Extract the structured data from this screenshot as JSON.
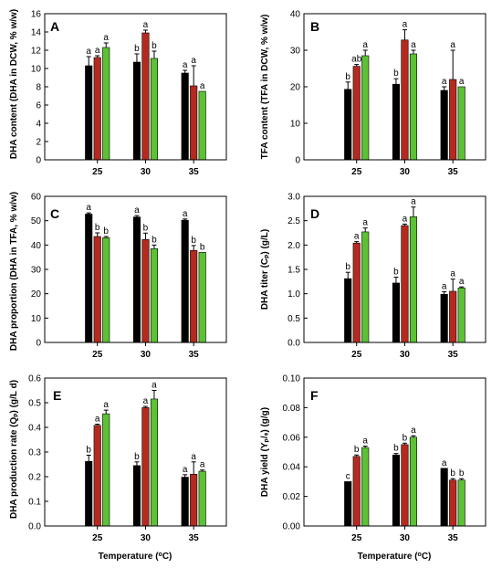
{
  "figure": {
    "colors": [
      "#000000",
      "#b52a1e",
      "#5cc234"
    ]
  },
  "chart_data": [
    {
      "type": "bar",
      "panel_label": "A",
      "ylabel": "DHA content (DHA in DCW, % w/w)",
      "xlabel": "",
      "categories": [
        "25",
        "30",
        "35"
      ],
      "ylim": [
        0,
        16
      ],
      "yticks": [
        "0",
        "2",
        "4",
        "6",
        "8",
        "10",
        "12",
        "14",
        "16"
      ],
      "series": [
        {
          "values": [
            10.3,
            10.7,
            9.5
          ],
          "errors": [
            1.0,
            0.9,
            0.3
          ],
          "letters": [
            "a",
            "b",
            "a"
          ]
        },
        {
          "values": [
            11.2,
            13.9,
            8.1
          ],
          "errors": [
            0.2,
            0.3,
            2.2
          ],
          "letters": [
            "a",
            "a",
            "a"
          ]
        },
        {
          "values": [
            12.3,
            11.1,
            7.5
          ],
          "errors": [
            0.5,
            0.8,
            0.0
          ],
          "letters": [
            "a",
            "b",
            "a"
          ]
        }
      ]
    },
    {
      "type": "bar",
      "panel_label": "B",
      "ylabel": "TFA content (TFA in DCW, % w/w)",
      "xlabel": "",
      "categories": [
        "25",
        "30",
        "35"
      ],
      "ylim": [
        0,
        40
      ],
      "yticks": [
        "0",
        "10",
        "20",
        "30",
        "40"
      ],
      "series": [
        {
          "values": [
            19.3,
            20.7,
            19.0
          ],
          "errors": [
            2.0,
            1.5,
            1.0
          ],
          "letters": [
            "b",
            "b",
            "a"
          ]
        },
        {
          "values": [
            25.6,
            32.8,
            22.0
          ],
          "errors": [
            0.5,
            2.8,
            8.0
          ],
          "letters": [
            "ab",
            "a",
            "a"
          ]
        },
        {
          "values": [
            28.5,
            29.0,
            20.0
          ],
          "errors": [
            1.5,
            1.0,
            0.0
          ],
          "letters": [
            "a",
            "a",
            "a"
          ]
        }
      ]
    },
    {
      "type": "bar",
      "panel_label": "C",
      "ylabel": "DHA proportion (DHA in TFA, % w/w)",
      "xlabel": "",
      "categories": [
        "25",
        "30",
        "35"
      ],
      "ylim": [
        0,
        60
      ],
      "yticks": [
        "0",
        "10",
        "20",
        "30",
        "40",
        "50",
        "60"
      ],
      "series": [
        {
          "values": [
            52.7,
            51.5,
            50.2
          ],
          "errors": [
            0.5,
            0.6,
            0.5
          ],
          "letters": [
            "a",
            "a",
            "a"
          ]
        },
        {
          "values": [
            43.5,
            42.3,
            37.8
          ],
          "errors": [
            1.5,
            2.6,
            2.0
          ],
          "letters": [
            "b",
            "b",
            "b"
          ]
        },
        {
          "values": [
            43.0,
            38.5,
            37.0
          ],
          "errors": [
            0.5,
            1.5,
            0.0
          ],
          "letters": [
            "b",
            "b",
            "b"
          ]
        }
      ]
    },
    {
      "type": "bar",
      "panel_label": "D",
      "ylabel": "DHA titer (Cₚ) (g/L)",
      "xlabel": "",
      "categories": [
        "25",
        "30",
        "35"
      ],
      "ylim": [
        0,
        3.0
      ],
      "yticks": [
        "0.0",
        "0.5",
        "1.0",
        "1.5",
        "2.0",
        "2.5",
        "3.0"
      ],
      "series": [
        {
          "values": [
            1.31,
            1.22,
            0.99
          ],
          "errors": [
            0.13,
            0.12,
            0.05
          ],
          "letters": [
            "b",
            "b",
            "a"
          ]
        },
        {
          "values": [
            2.04,
            2.4,
            1.05
          ],
          "errors": [
            0.03,
            0.03,
            0.25
          ],
          "letters": [
            "a",
            "a",
            "a"
          ]
        },
        {
          "values": [
            2.27,
            2.58,
            1.12
          ],
          "errors": [
            0.08,
            0.2,
            0.02
          ],
          "letters": [
            "a",
            "a",
            "a"
          ]
        }
      ]
    },
    {
      "type": "bar",
      "panel_label": "E",
      "ylabel": "DHA production rate (Qₚ) (g/L d)",
      "xlabel": "Temperature (°C)",
      "categories": [
        "25",
        "30",
        "35"
      ],
      "ylim": [
        0,
        0.6
      ],
      "yticks": [
        "0.0",
        "0.1",
        "0.2",
        "0.3",
        "0.4",
        "0.5",
        "0.6"
      ],
      "series": [
        {
          "values": [
            0.262,
            0.245,
            0.198
          ],
          "errors": [
            0.025,
            0.015,
            0.01
          ],
          "letters": [
            "b",
            "b",
            "a"
          ]
        },
        {
          "values": [
            0.408,
            0.48,
            0.21
          ],
          "errors": [
            0.005,
            0.005,
            0.05
          ],
          "letters": [
            "a",
            "a",
            "a"
          ]
        },
        {
          "values": [
            0.455,
            0.515,
            0.222
          ],
          "errors": [
            0.015,
            0.035,
            0.005
          ],
          "letters": [
            "a",
            "a",
            "a"
          ]
        }
      ]
    },
    {
      "type": "bar",
      "panel_label": "F",
      "ylabel": "DHA yield (Yₚ/ₛ) (g/g)",
      "xlabel": "Temperature (°C)",
      "categories": [
        "25",
        "30",
        "35"
      ],
      "ylim": [
        0,
        0.1
      ],
      "yticks": [
        "0.00",
        "0.02",
        "0.04",
        "0.06",
        "0.08",
        "0.10"
      ],
      "series": [
        {
          "values": [
            0.03,
            0.048,
            0.039
          ],
          "errors": [
            0.0,
            0.001,
            0.0
          ],
          "letters": [
            "c",
            "b",
            "a"
          ]
        },
        {
          "values": [
            0.047,
            0.055,
            0.031
          ],
          "errors": [
            0.001,
            0.001,
            0.001
          ],
          "letters": [
            "b",
            "b",
            "b"
          ]
        },
        {
          "values": [
            0.053,
            0.06,
            0.031
          ],
          "errors": [
            0.001,
            0.001,
            0.001
          ],
          "letters": [
            "a",
            "a",
            "b"
          ]
        }
      ]
    }
  ]
}
